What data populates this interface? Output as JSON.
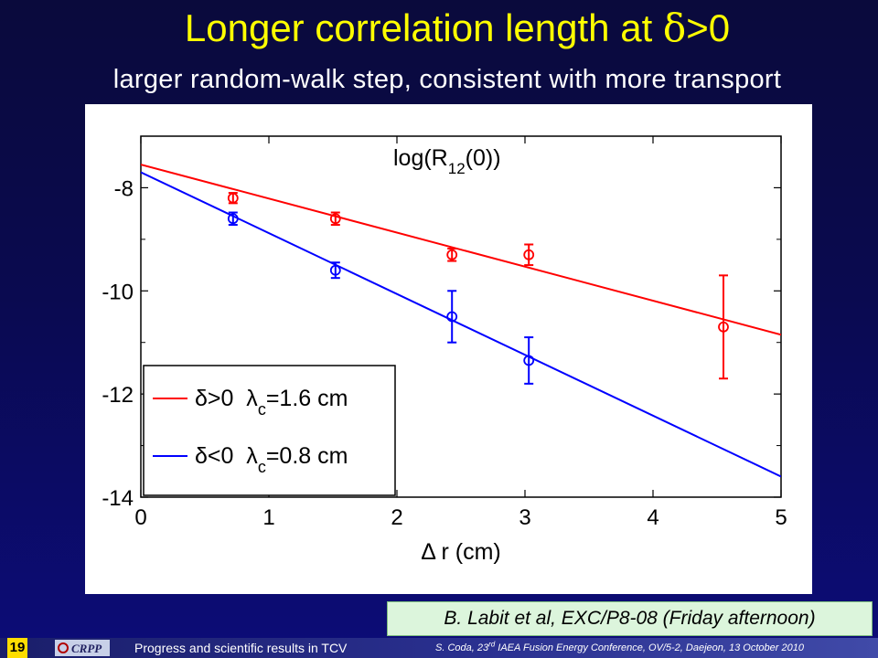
{
  "slide": {
    "title_prefix": "Longer correlation length at ",
    "title_symbol": "δ",
    "title_suffix": ">0",
    "subtitle": "larger random-walk step, consistent with more transport"
  },
  "reference": "B. Labit et al, EXC/P8-08 (Friday afternoon)",
  "footer": {
    "slide_number": "19",
    "logo_text": "CRPP",
    "left_text": "Progress and scientific results in TCV",
    "right_text_pre": "S. Coda, 23",
    "right_text_sup": "rd",
    "right_text_post": " IAEA Fusion Energy Conference,  OV/5-2, Daejeon, 13 October 2010"
  },
  "colors": {
    "title": "#ffff00",
    "series_pos": "#ff0000",
    "series_neg": "#0000ff"
  },
  "chart_data": {
    "type": "scatter",
    "title": "log(R12(0))",
    "xlabel": "Δ r (cm)",
    "ylabel": "",
    "xlim": [
      0,
      5
    ],
    "ylim": [
      -14,
      -7
    ],
    "xticks": [
      0,
      1,
      2,
      3,
      4,
      5
    ],
    "yticks": [
      -14,
      -12,
      -10,
      -8
    ],
    "grid": false,
    "legend_position": "lower-left",
    "series": [
      {
        "name": "δ>0  λc=1.6 cm",
        "color": "#ff0000",
        "x": [
          0.72,
          1.52,
          2.43,
          3.03,
          4.55
        ],
        "y": [
          -8.2,
          -8.6,
          -9.3,
          -9.3,
          -10.7
        ],
        "err": [
          0.1,
          0.12,
          0.12,
          0.2,
          1.0
        ],
        "fit": {
          "x": [
            0,
            5
          ],
          "y": [
            -7.55,
            -10.85
          ]
        }
      },
      {
        "name": "δ<0  λc=0.8 cm",
        "color": "#0000ff",
        "x": [
          0.72,
          1.52,
          2.43,
          3.03
        ],
        "y": [
          -8.6,
          -9.6,
          -10.5,
          -11.35
        ],
        "err": [
          0.12,
          0.15,
          0.5,
          0.45
        ],
        "fit": {
          "x": [
            0,
            5
          ],
          "y": [
            -7.7,
            -13.6
          ]
        }
      }
    ]
  }
}
